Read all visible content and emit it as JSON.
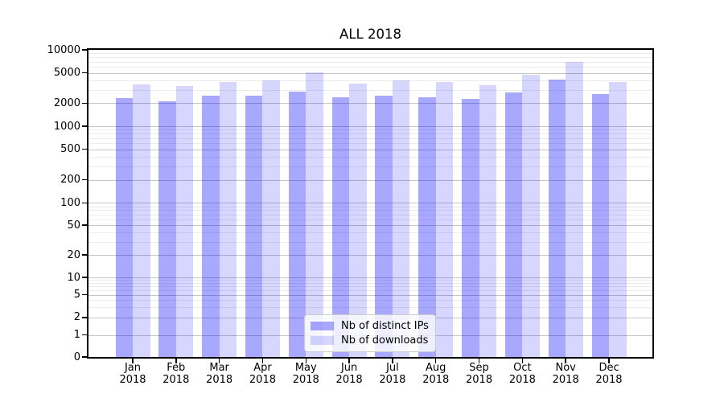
{
  "figure": {
    "background": "#ffffff"
  },
  "chart_data": {
    "type": "bar",
    "title": "ALL 2018",
    "categories": [
      "Jan",
      "Feb",
      "Mar",
      "Apr",
      "May",
      "Jun",
      "Jul",
      "Aug",
      "Sep",
      "Oct",
      "Nov",
      "Dec"
    ],
    "category_year": "2018",
    "series": [
      {
        "name": "Nb of distinct IPs",
        "color": "rgba(0,0,255,0.34)",
        "values": [
          2320,
          2100,
          2530,
          2530,
          2840,
          2400,
          2510,
          2390,
          2300,
          2770,
          4080,
          2620
        ]
      },
      {
        "name": "Nb of downloads",
        "color": "rgba(0,0,255,0.16)",
        "values": [
          3550,
          3340,
          3790,
          4010,
          5080,
          3640,
          3980,
          3790,
          3440,
          4670,
          6900,
          3770
        ]
      }
    ],
    "yscale": "symlog",
    "ylim": [
      0,
      10000
    ],
    "yticks": [
      0,
      1,
      2,
      5,
      10,
      20,
      50,
      100,
      200,
      500,
      1000,
      2000,
      5000,
      10000
    ],
    "grid": {
      "enabled": true,
      "major_color": "#c6c6c6",
      "minor_color": "#ebebeb"
    },
    "legend": {
      "position": "lower-center"
    },
    "spine_color": "#000000",
    "text_color": "#000000"
  }
}
